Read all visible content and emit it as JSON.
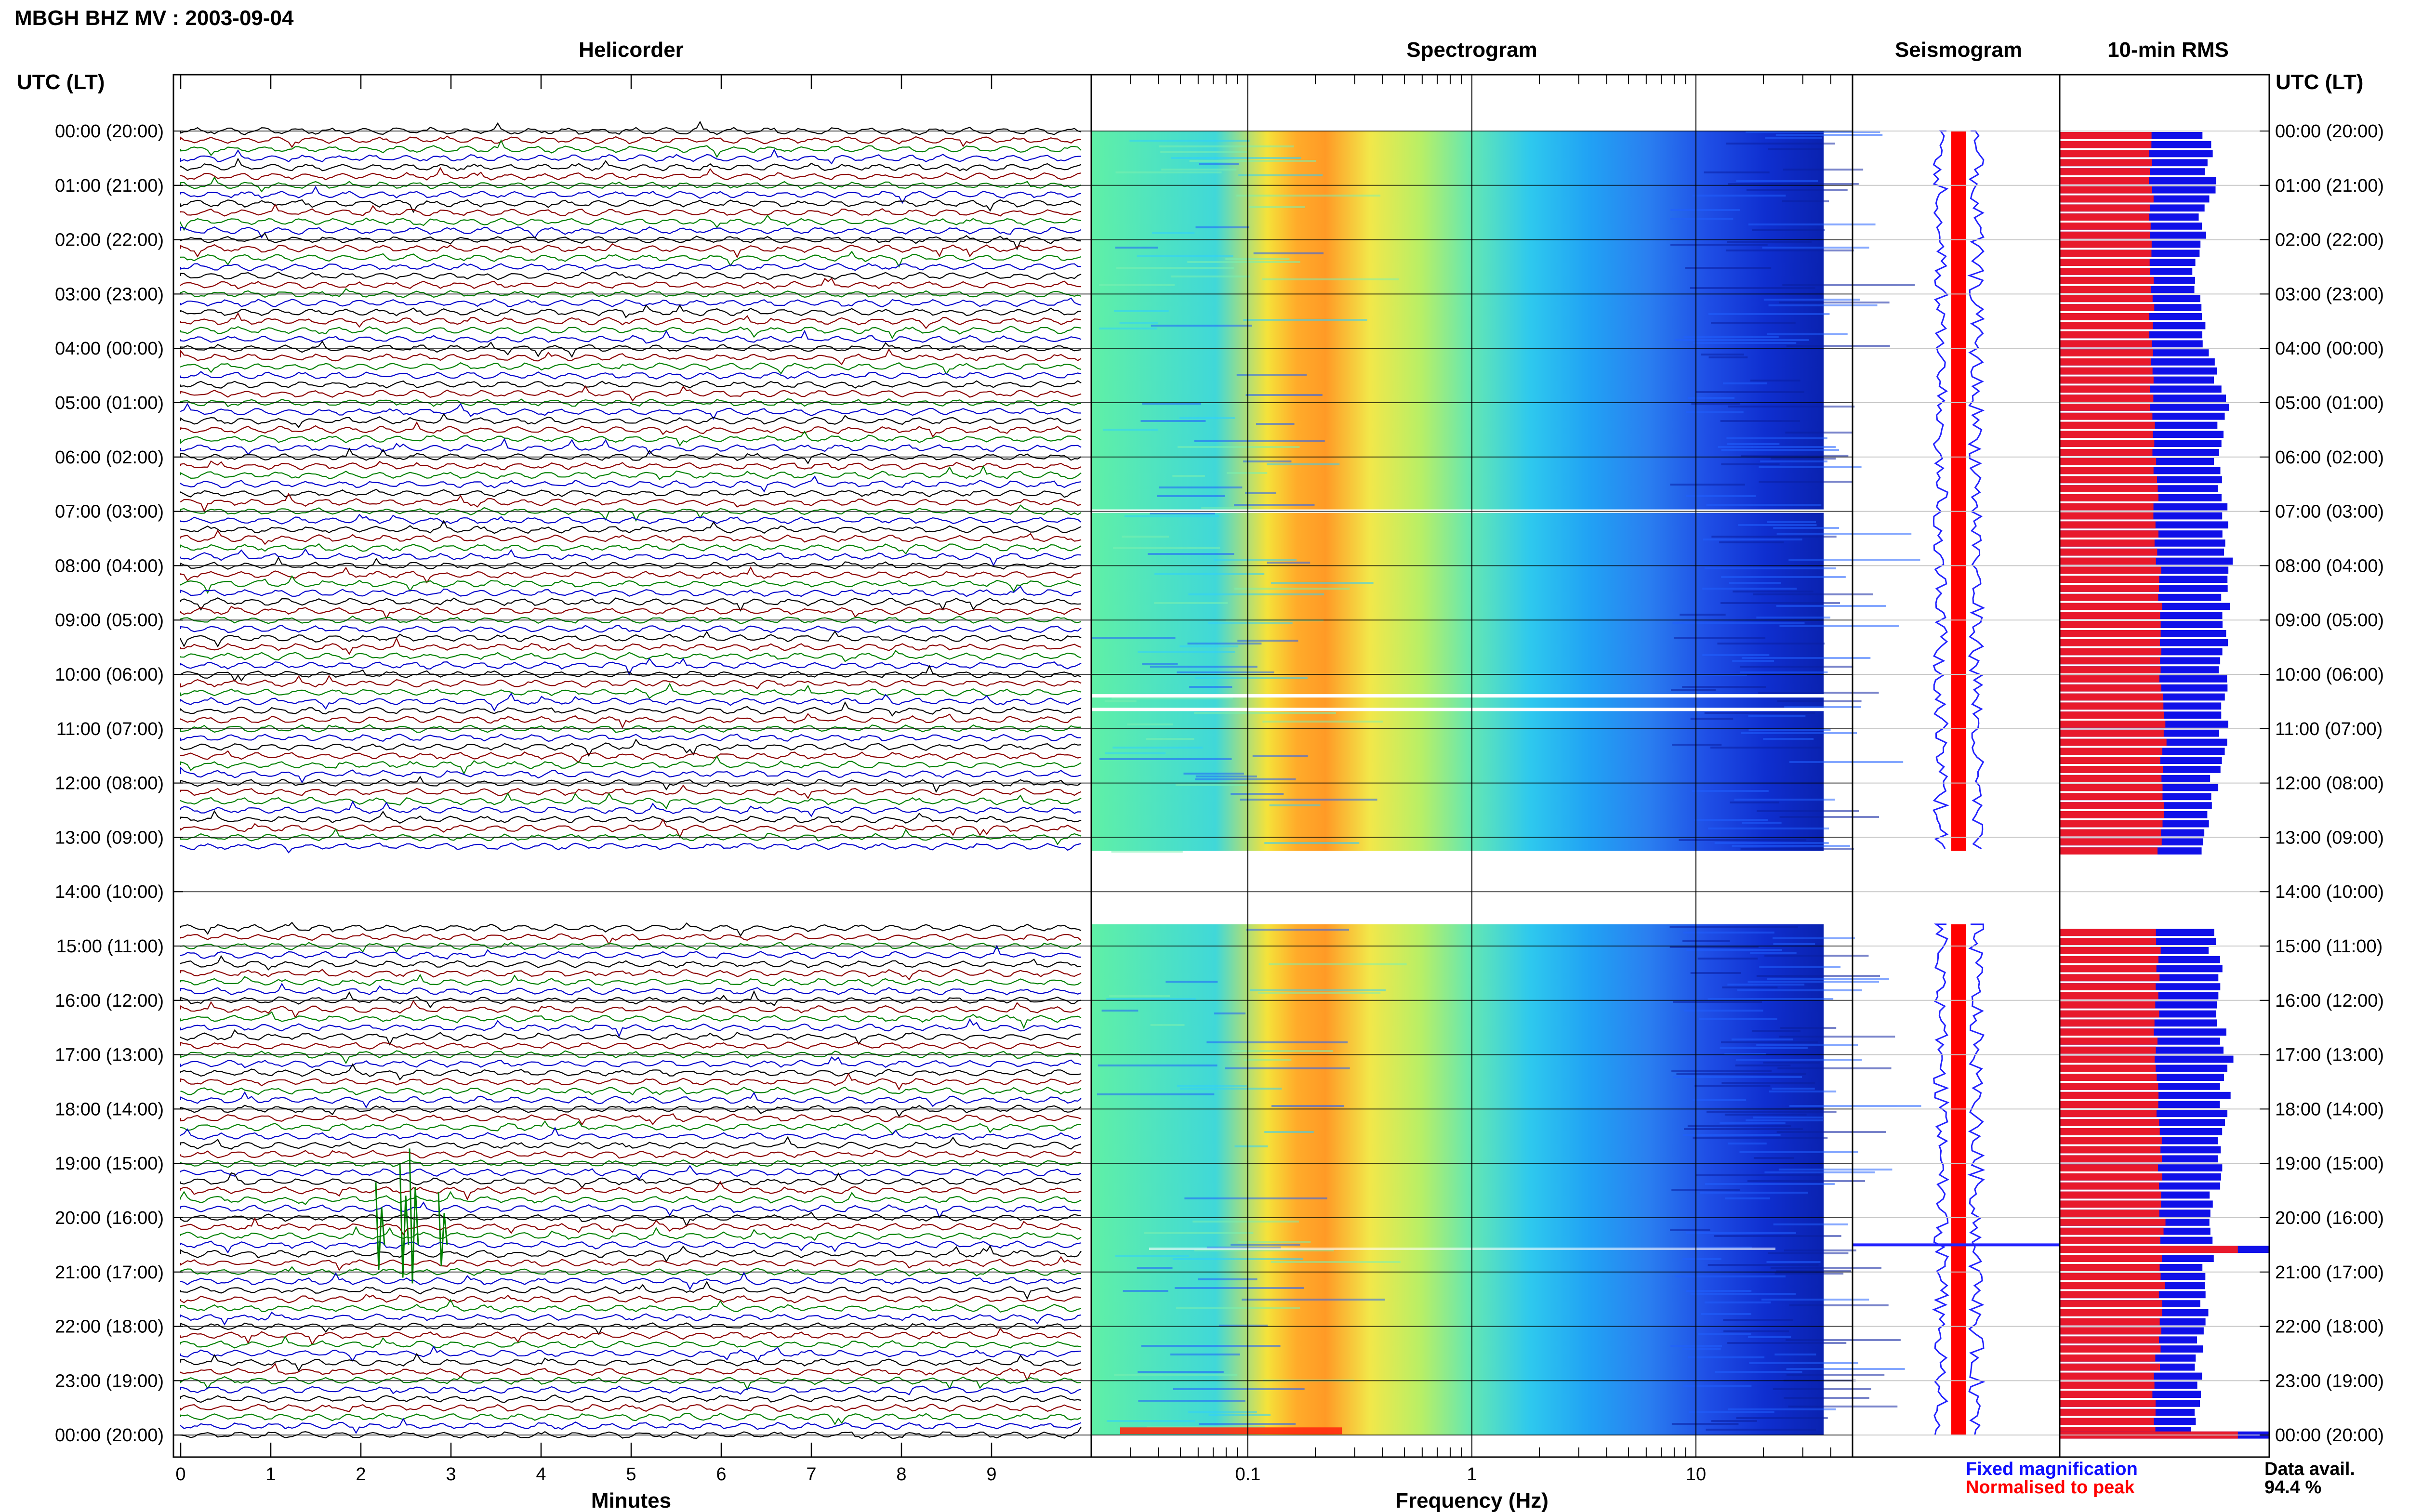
{
  "chart_data": {
    "type": "heatmap",
    "title": "MBGH BHZ MV : 2003-09-04",
    "panels": {
      "helicorder": {
        "title": "Helicorder",
        "xlabel": "Minutes",
        "xticks": [
          "0",
          "1",
          "2",
          "3",
          "4",
          "5",
          "6",
          "7",
          "8",
          "9"
        ],
        "xlim": [
          0,
          10
        ],
        "trace_colors": [
          "#000000",
          "#8b0000",
          "#008000",
          "#0000cc"
        ]
      },
      "spectrogram": {
        "title": "Spectrogram",
        "xlabel": "Frequency (Hz)",
        "xticks": [
          "0.1",
          "1",
          "10"
        ],
        "xscale": "log",
        "xlim": [
          0.02,
          50
        ]
      },
      "seismogram": {
        "title": "Seismogram"
      },
      "rms": {
        "title": "10-min RMS"
      }
    },
    "y_axis_label": "UTC (LT)",
    "time_labels": [
      "00:00 (20:00)",
      "01:00 (21:00)",
      "02:00 (22:00)",
      "03:00 (23:00)",
      "04:00 (00:00)",
      "05:00 (01:00)",
      "06:00 (02:00)",
      "07:00 (03:00)",
      "08:00 (04:00)",
      "09:00 (05:00)",
      "10:00 (06:00)",
      "11:00 (07:00)",
      "12:00 (08:00)",
      "13:00 (09:00)",
      "14:00 (10:00)",
      "15:00 (11:00)",
      "16:00 (12:00)",
      "17:00 (13:00)",
      "18:00 (14:00)",
      "19:00 (15:00)",
      "20:00 (16:00)",
      "21:00 (17:00)",
      "22:00 (18:00)",
      "23:00 (19:00)",
      "00:00 (20:00)"
    ],
    "data_gap_utc_hours": [
      13.25,
      14.6
    ],
    "rms_red_profile": [
      0.44,
      0.44,
      0.44,
      0.44,
      0.44,
      0.44,
      0.45,
      0.46,
      0.47,
      0.48,
      0.49,
      0.5,
      0.49,
      0.48,
      0.47,
      0.47,
      0.46,
      0.46,
      0.47,
      0.48,
      0.49,
      0.49,
      0.48,
      0.46,
      0.44
    ],
    "rms_blue_profile": [
      0.7,
      0.72,
      0.66,
      0.65,
      0.7,
      0.78,
      0.76,
      0.78,
      0.8,
      0.78,
      0.77,
      0.78,
      0.74,
      0.7,
      0.72,
      0.74,
      0.76,
      0.8,
      0.78,
      0.76,
      0.72,
      0.7,
      0.68,
      0.66,
      0.64
    ],
    "events": [
      {
        "utc": "20:30",
        "rms": 1.0
      },
      {
        "utc": "23:55",
        "rms": 1.0
      }
    ],
    "legend": [
      {
        "label": "Fixed magnification",
        "color": "#0000ff"
      },
      {
        "label": "Normalised to peak",
        "color": "#ff0000"
      }
    ],
    "availability": {
      "label": "Data avail.",
      "value": "94.4 %"
    },
    "colors": {
      "trace_black": "#000000",
      "trace_red": "#8b0000",
      "trace_green": "#008000",
      "trace_blue": "#0000cc",
      "rms_red": "#e8192c",
      "rms_blue": "#1010e8",
      "seis_red": "#ff0000",
      "seis_blue": "#2222ff"
    }
  }
}
